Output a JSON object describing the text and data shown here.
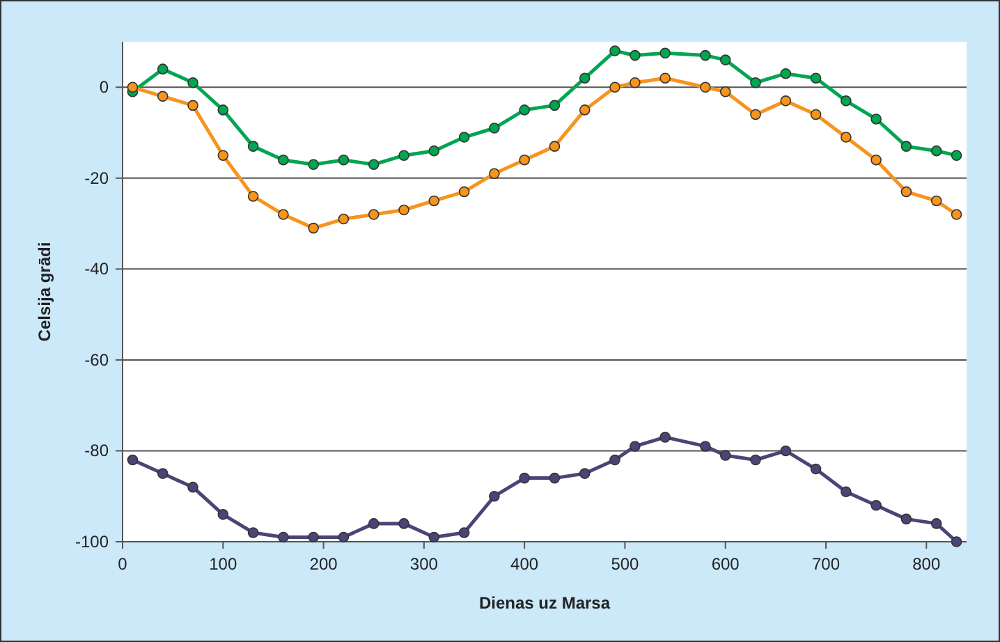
{
  "chart_data": {
    "type": "line",
    "xlabel": "Dienas uz Marsa",
    "ylabel": "Celsija grādi",
    "x": [
      10,
      40,
      70,
      100,
      130,
      160,
      190,
      220,
      250,
      280,
      310,
      340,
      370,
      400,
      430,
      460,
      490,
      510,
      540,
      580,
      600,
      630,
      660,
      690,
      720,
      750,
      780,
      810,
      830
    ],
    "series": [
      {
        "color": "#00a651",
        "values": [
          -1,
          4,
          1,
          -5,
          -13,
          -16,
          -17,
          -16,
          -17,
          -15,
          -14,
          -11,
          -9,
          -5,
          -4,
          2,
          8,
          7,
          7.5,
          7,
          6,
          1,
          3,
          2,
          -3,
          -7,
          -13,
          -14,
          -15
        ]
      },
      {
        "color": "#f7941d",
        "values": [
          0,
          -2,
          -4,
          -15,
          -24,
          -28,
          -31,
          -29,
          -28,
          -27,
          -25,
          -23,
          -19,
          -16,
          -13,
          -5,
          0,
          1,
          2,
          0,
          -1,
          -6,
          -3,
          -6,
          -11,
          -16,
          -23,
          -25,
          -28
        ]
      },
      {
        "color": "#4b4577",
        "values": [
          -82,
          -85,
          -88,
          -94,
          -98,
          -99,
          -99,
          -99,
          -96,
          -96,
          -99,
          -98,
          -90,
          -86,
          -86,
          -85,
          -82,
          -79,
          -77,
          -79,
          -81,
          -82,
          -80,
          -84,
          -89,
          -92,
          -95,
          -96,
          -100
        ]
      }
    ],
    "xlim": [
      0,
      840
    ],
    "xticks": [
      0,
      100,
      200,
      300,
      400,
      500,
      600,
      700,
      800
    ],
    "ylim": [
      -100,
      10
    ],
    "yticks": [
      -100,
      -80,
      -60,
      -40,
      -20,
      0
    ],
    "grid": "y",
    "marker": "circle",
    "line_style": "solid"
  }
}
